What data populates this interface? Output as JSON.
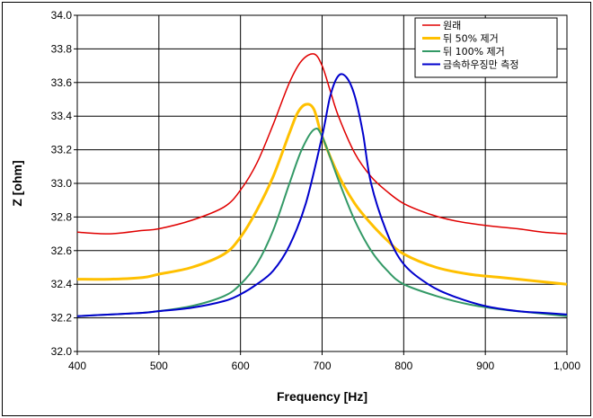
{
  "chart_data": {
    "type": "line",
    "title": "",
    "xlabel": "Frequency [Hz]",
    "ylabel": "Z [ohm]",
    "xlim": [
      400,
      1000
    ],
    "ylim": [
      32.0,
      34.0
    ],
    "x_ticks": [
      "400",
      "500",
      "600",
      "700",
      "800",
      "900",
      "1,000"
    ],
    "y_ticks": [
      "32.0",
      "32.2",
      "32.4",
      "32.6",
      "32.8",
      "33.0",
      "33.2",
      "33.4",
      "33.6",
      "33.8",
      "34.0"
    ],
    "grid": true,
    "legend_position": "top-right",
    "series": [
      {
        "name": "원래",
        "color": "#e00000",
        "x": [
          400,
          440,
          480,
          500,
          540,
          580,
          600,
          620,
          640,
          660,
          675,
          690,
          700,
          710,
          720,
          740,
          760,
          780,
          800,
          830,
          860,
          900,
          940,
          970,
          1000
        ],
        "y": [
          32.71,
          32.7,
          32.72,
          32.73,
          32.78,
          32.86,
          32.96,
          33.12,
          33.35,
          33.6,
          33.73,
          33.77,
          33.7,
          33.55,
          33.4,
          33.18,
          33.04,
          32.95,
          32.88,
          32.82,
          32.78,
          32.75,
          32.73,
          32.71,
          32.7
        ]
      },
      {
        "name": "뒤 50% 제거",
        "color": "#ffc000",
        "x": [
          400,
          440,
          480,
          500,
          540,
          580,
          600,
          620,
          640,
          660,
          670,
          680,
          690,
          700,
          720,
          740,
          760,
          780,
          800,
          840,
          880,
          920,
          960,
          1000
        ],
        "y": [
          32.43,
          32.43,
          32.44,
          32.46,
          32.5,
          32.58,
          32.68,
          32.84,
          33.04,
          33.3,
          33.42,
          33.47,
          33.44,
          33.28,
          33.05,
          32.88,
          32.76,
          32.66,
          32.58,
          32.5,
          32.46,
          32.44,
          32.42,
          32.4
        ]
      },
      {
        "name": "뒤 100% 제거",
        "color": "#339966",
        "x": [
          400,
          440,
          480,
          500,
          540,
          580,
          600,
          620,
          640,
          660,
          675,
          690,
          700,
          720,
          740,
          760,
          780,
          800,
          840,
          880,
          920,
          960,
          1000
        ],
        "y": [
          32.21,
          32.22,
          32.23,
          32.24,
          32.27,
          32.33,
          32.4,
          32.52,
          32.72,
          33.0,
          33.2,
          33.32,
          33.28,
          33.02,
          32.78,
          32.6,
          32.48,
          32.4,
          32.33,
          32.28,
          32.25,
          32.23,
          32.21
        ]
      },
      {
        "name": "금속하우징만 측정",
        "color": "#0000cc",
        "x": [
          400,
          440,
          480,
          500,
          540,
          580,
          600,
          620,
          640,
          660,
          680,
          700,
          710,
          720,
          730,
          740,
          750,
          760,
          780,
          800,
          830,
          860,
          900,
          940,
          970,
          1000
        ],
        "y": [
          32.21,
          32.22,
          32.23,
          32.24,
          32.26,
          32.3,
          32.34,
          32.4,
          32.48,
          32.63,
          32.88,
          33.28,
          33.52,
          33.64,
          33.63,
          33.52,
          33.3,
          33.0,
          32.7,
          32.52,
          32.4,
          32.33,
          32.27,
          32.24,
          32.23,
          32.22
        ]
      }
    ]
  }
}
